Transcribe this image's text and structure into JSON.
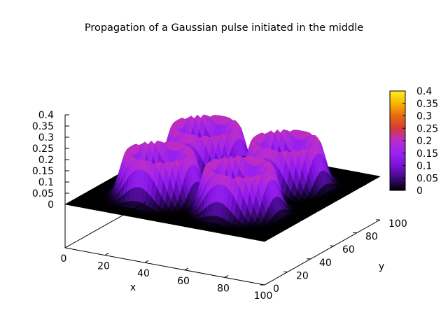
{
  "chart_data": {
    "type": "surface3d",
    "title": "Propagation of a Gaussian pulse initiated in the middle",
    "xlabel": "x",
    "ylabel": "y",
    "zlabel": "",
    "xlim": [
      0,
      100
    ],
    "ylim": [
      0,
      100
    ],
    "zlim": [
      0,
      0.4
    ],
    "x_ticks": [
      "0",
      "20",
      "40",
      "60",
      "80",
      "100"
    ],
    "y_ticks": [
      "0",
      "20",
      "40",
      "60",
      "80",
      "100"
    ],
    "z_ticks": [
      "0",
      "0.05",
      "0.1",
      "0.15",
      "0.2",
      "0.25",
      "0.3",
      "0.35",
      "0.4"
    ],
    "colorbar": {
      "range": [
        0,
        0.4
      ],
      "ticks": [
        "0",
        "0.05",
        "0.1",
        "0.15",
        "0.2",
        "0.25",
        "0.3",
        "0.35",
        "0.4"
      ],
      "palette": [
        "#000000",
        "#3a0a7a",
        "#7a10d8",
        "#9a22f0",
        "#b92ccf",
        "#d43a3a",
        "#e86a12",
        "#f5b400",
        "#ffee22"
      ]
    },
    "surface": {
      "grid_n": 50,
      "ring_radius": 14,
      "ring_width": 4.5,
      "ring_peak": 0.2,
      "centers": [
        [
          30,
          30
        ],
        [
          30,
          70
        ],
        [
          70,
          30
        ],
        [
          70,
          70
        ]
      ]
    },
    "grid": false,
    "legend": "colorbar-right"
  }
}
